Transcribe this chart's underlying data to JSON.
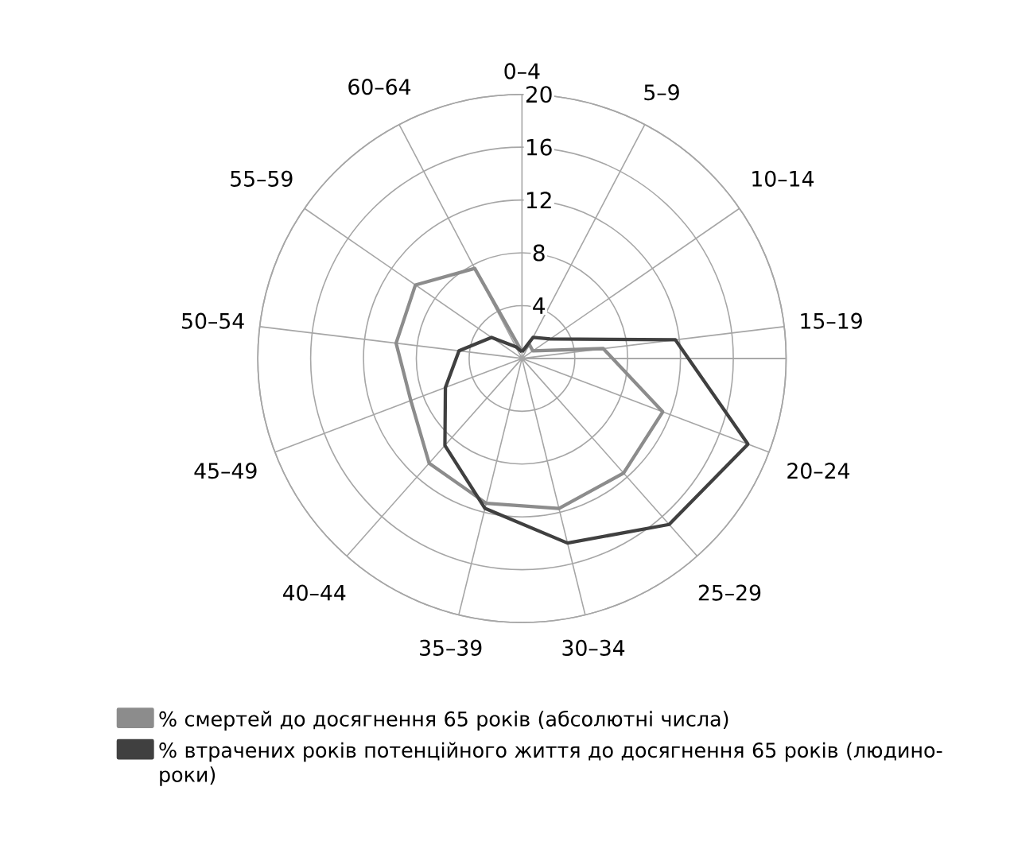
{
  "chart_data": {
    "type": "radar",
    "categories": [
      "0–4",
      "5–9",
      "10–14",
      "15–19",
      "20–24",
      "25–29",
      "30–34",
      "35–39",
      "40–44",
      "45–49",
      "50–54",
      "55–59",
      "60–64"
    ],
    "series": [
      {
        "name": "% смертей до досягнення 65 років (абсолютні числа)",
        "color": "#8c8c8c",
        "values": [
          0.5,
          1.2,
          1.0,
          6.2,
          11.4,
          11.6,
          11.7,
          11.3,
          10.6,
          9.0,
          9.6,
          9.8,
          7.7
        ]
      },
      {
        "name": "% втрачених років потенційного життя до досягнення 65 років (людино-роки)",
        "color": "#404040",
        "values": [
          0.5,
          1.8,
          2.6,
          11.7,
          18.3,
          16.8,
          14.4,
          11.7,
          8.8,
          6.2,
          4.8,
          2.8,
          1.0
        ]
      }
    ],
    "ylim": [
      0,
      20
    ],
    "yticks": [
      4,
      8,
      12,
      16,
      20
    ],
    "grid": true,
    "legend": "bottom left"
  }
}
